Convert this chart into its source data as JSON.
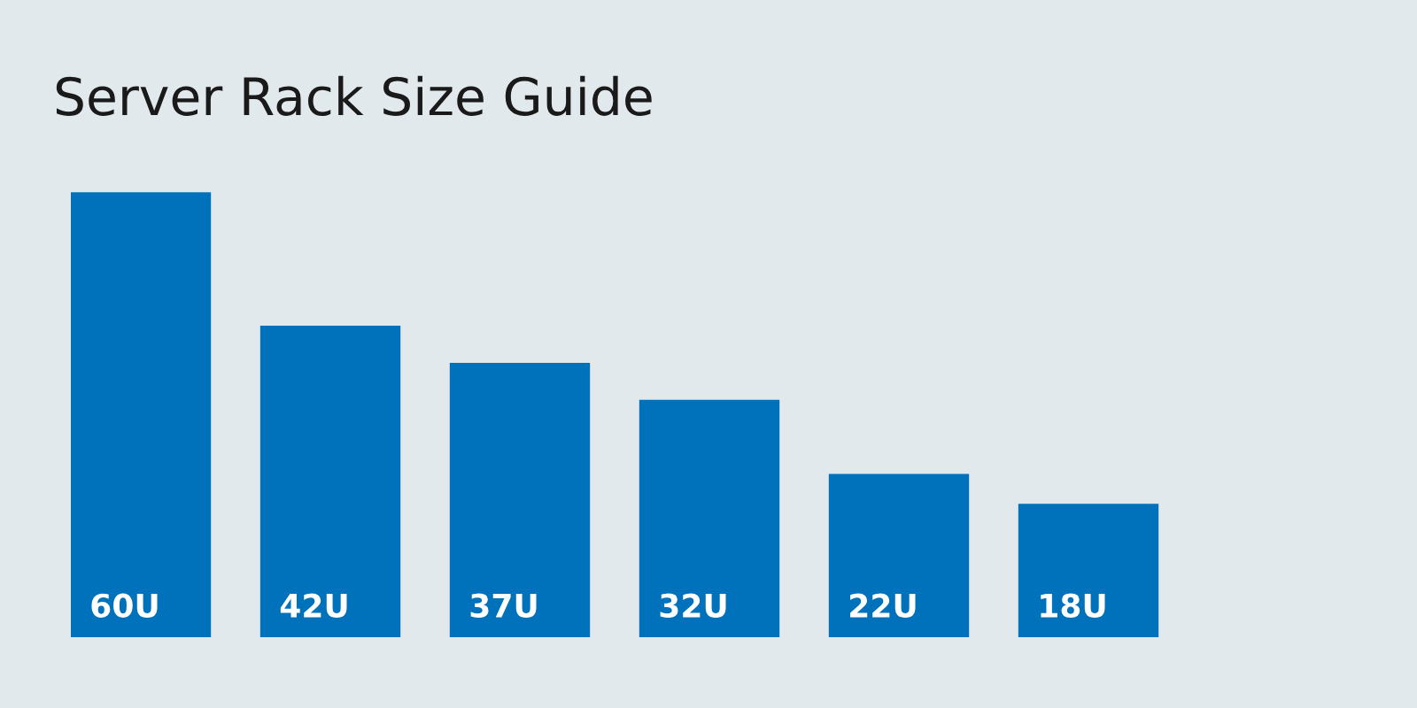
{
  "chart_data": {
    "type": "bar",
    "title": "Server Rack Size Guide",
    "categories": [
      null,
      null,
      null,
      null,
      null,
      null
    ],
    "values": [
      60,
      42,
      37,
      32,
      22,
      18
    ],
    "value_labels": [
      "60U",
      "42U",
      "37U",
      "32U",
      "22U",
      "18U"
    ],
    "color": "#0071bb",
    "grid": false,
    "legend": false
  }
}
